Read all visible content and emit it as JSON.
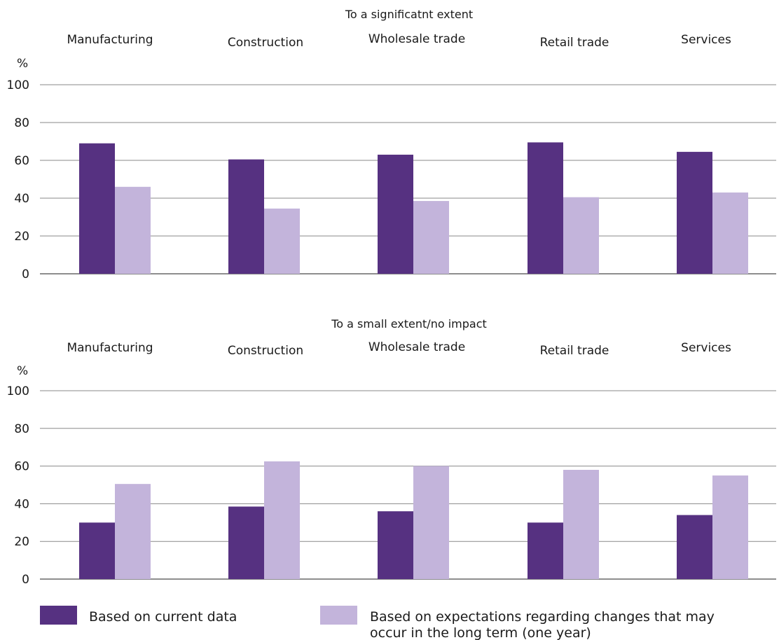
{
  "chart_data": [
    {
      "type": "bar",
      "title": "To a significatnt extent",
      "ylabel": "%",
      "ylim": [
        0,
        100
      ],
      "yticks": [
        0,
        20,
        40,
        60,
        80,
        100
      ],
      "grid": true,
      "categories": [
        "Manufacturing",
        "Construction",
        "Wholesale trade",
        "Retail trade",
        "Services"
      ],
      "series": [
        {
          "name": "Based on current data",
          "color": "#563181",
          "values": [
            69,
            60.5,
            63,
            69.5,
            64.5
          ]
        },
        {
          "name": "Based on expectations regarding changes that may occur in the long term (one year)",
          "color": "#c3b4db",
          "values": [
            46,
            34.5,
            38.5,
            40.5,
            43
          ]
        }
      ]
    },
    {
      "type": "bar",
      "title": "To a small extent/no impact",
      "ylabel": "%",
      "ylim": [
        0,
        100
      ],
      "yticks": [
        0,
        20,
        40,
        60,
        80,
        100
      ],
      "grid": true,
      "categories": [
        "Manufacturing",
        "Construction",
        "Wholesale trade",
        "Retail trade",
        "Services"
      ],
      "series": [
        {
          "name": "Based on current data",
          "color": "#563181",
          "values": [
            30,
            38.5,
            36,
            30,
            34
          ]
        },
        {
          "name": "Based on expectations regarding changes that may occur in the long term (one year)",
          "color": "#c3b4db",
          "values": [
            50.5,
            62.5,
            60,
            58,
            55
          ]
        }
      ]
    }
  ],
  "legend": {
    "placement": "bottom",
    "items": [
      {
        "label": "Based on current data",
        "color": "#563181"
      },
      {
        "label_lines": [
          "Based on expectations regarding changes that may",
          "occur in the long term (one year)"
        ],
        "color": "#c3b4db"
      }
    ]
  }
}
